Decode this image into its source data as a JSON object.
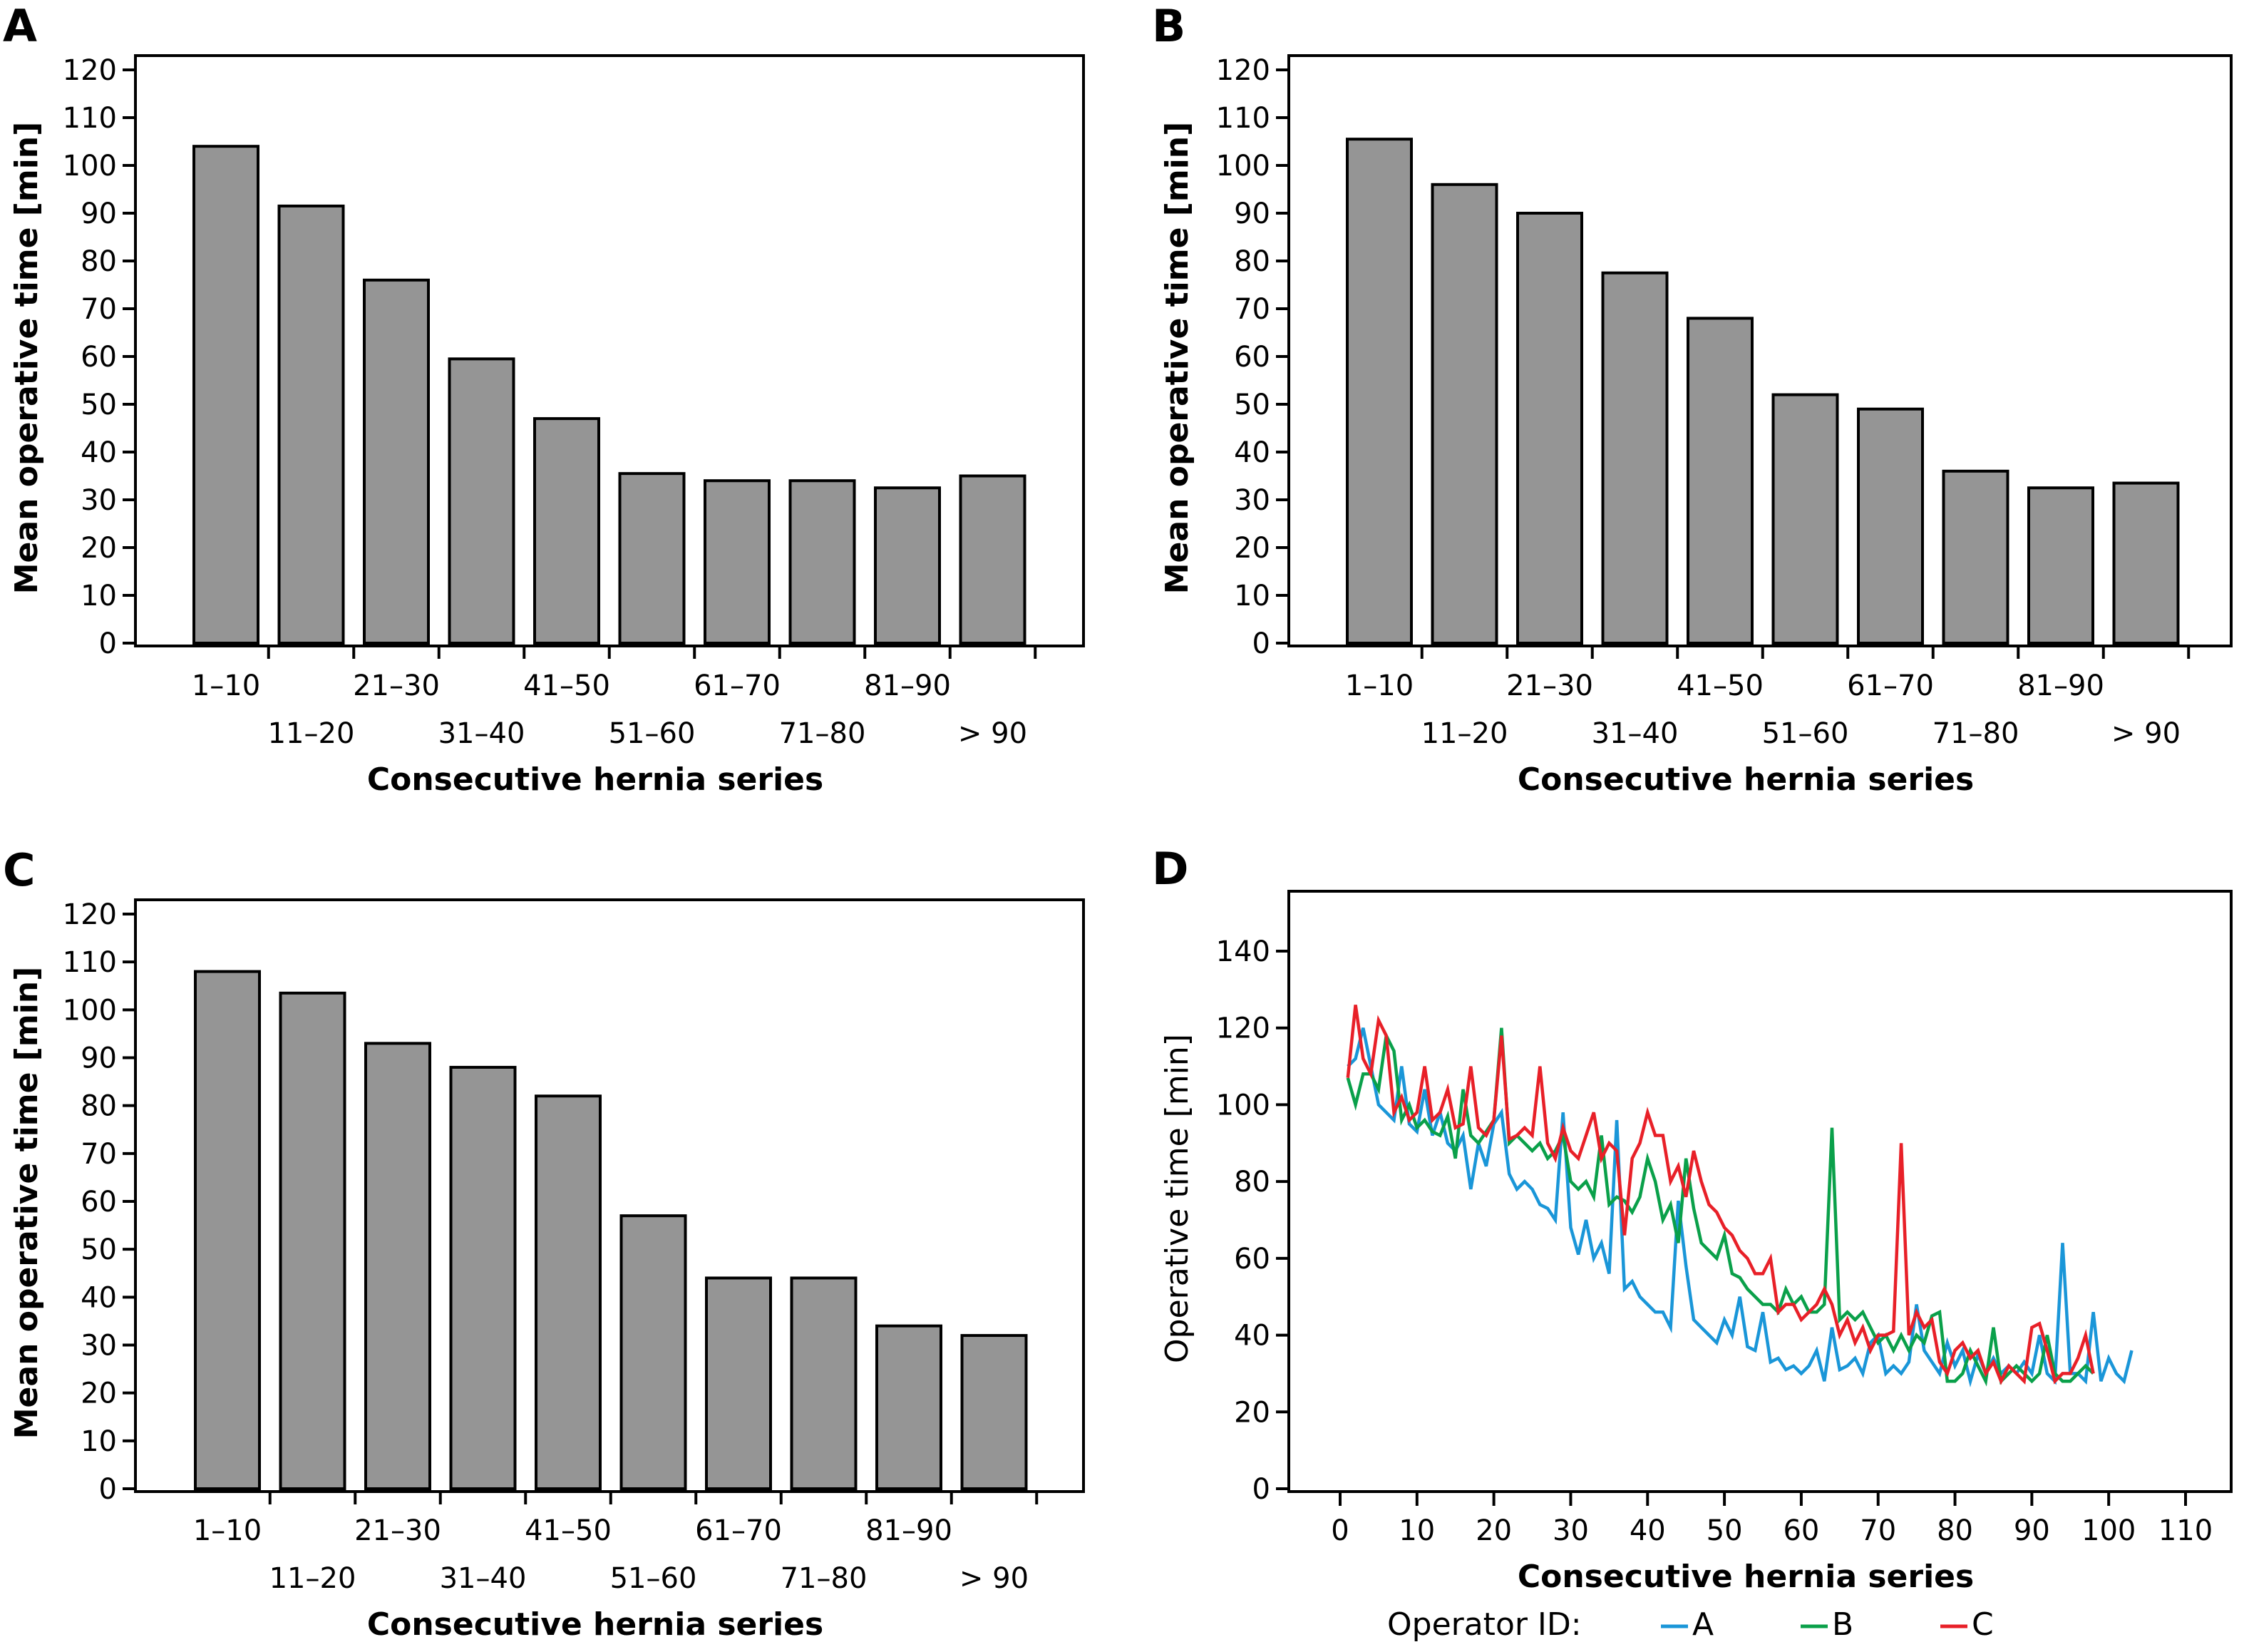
{
  "chart_data": [
    {
      "panel": "A",
      "type": "bar",
      "title": "",
      "categories": [
        "1–10",
        "11–20",
        "21–30",
        "31–40",
        "41–50",
        "51–60",
        "61–70",
        "71–80",
        "81–90",
        "> 90"
      ],
      "values": [
        104,
        91.5,
        76,
        59.5,
        47,
        35.5,
        34,
        34,
        32.5,
        35
      ],
      "xlabel": "Consecutive hernia series",
      "ylabel": "Mean operative time [min]",
      "ylim": [
        0,
        125
      ],
      "yticks": [
        0,
        10,
        20,
        30,
        40,
        50,
        60,
        70,
        80,
        90,
        100,
        110,
        120
      ],
      "grid": false,
      "bar_color": "#959595"
    },
    {
      "panel": "B",
      "type": "bar",
      "title": "",
      "categories": [
        "1–10",
        "11–20",
        "21–30",
        "31–40",
        "41–50",
        "51–60",
        "61–70",
        "71–80",
        "81–90",
        "> 90"
      ],
      "values": [
        105.5,
        96,
        90,
        77.5,
        68,
        52,
        49,
        36,
        32.5,
        33.5
      ],
      "xlabel": "Consecutive hernia series",
      "ylabel": "Mean operative time [min]",
      "ylim": [
        0,
        125
      ],
      "yticks": [
        0,
        10,
        20,
        30,
        40,
        50,
        60,
        70,
        80,
        90,
        100,
        110,
        120
      ],
      "grid": false,
      "bar_color": "#959595"
    },
    {
      "panel": "C",
      "type": "bar",
      "title": "",
      "categories": [
        "1–10",
        "11–20",
        "21–30",
        "31–40",
        "41–50",
        "51–60",
        "61–70",
        "71–80",
        "81–90",
        "> 90"
      ],
      "values": [
        108,
        103.5,
        93,
        88,
        82,
        57,
        44,
        44,
        34,
        32
      ],
      "xlabel": "Consecutive hernia series",
      "ylabel": "Mean operative time [min]",
      "ylim": [
        0,
        125
      ],
      "yticks": [
        0,
        10,
        20,
        30,
        40,
        50,
        60,
        70,
        80,
        90,
        100,
        110,
        120
      ],
      "grid": false,
      "bar_color": "#959595"
    },
    {
      "panel": "D",
      "type": "line",
      "title": "",
      "xlabel": "Consecutive hernia series",
      "ylabel": "Operative time [min]",
      "xlim": [
        -4,
        116
      ],
      "ylim": [
        0,
        155
      ],
      "xticks": [
        0,
        10,
        20,
        30,
        40,
        50,
        60,
        70,
        80,
        90,
        100,
        110
      ],
      "yticks": [
        0,
        20,
        40,
        60,
        80,
        100,
        120,
        140
      ],
      "grid": false,
      "legend": {
        "title": "Operator ID:",
        "placement": "bottom"
      },
      "series": [
        {
          "name": "A",
          "color": "#1a96d8",
          "x": [
            1,
            2,
            3,
            4,
            5,
            6,
            7,
            8,
            9,
            10,
            11,
            12,
            13,
            14,
            15,
            16,
            17,
            18,
            19,
            20,
            21,
            22,
            23,
            24,
            25,
            26,
            27,
            28,
            29,
            30,
            31,
            32,
            33,
            34,
            35,
            36,
            37,
            38,
            39,
            40,
            41,
            42,
            43,
            44,
            45,
            46,
            47,
            48,
            49,
            50,
            51,
            52,
            53,
            54,
            55,
            56,
            57,
            58,
            59,
            60,
            61,
            62,
            63,
            64,
            65,
            66,
            67,
            68,
            69,
            70,
            71,
            72,
            73,
            74,
            75,
            76,
            77,
            78,
            79,
            80,
            81,
            82,
            83,
            84,
            85,
            86,
            87,
            88,
            89,
            90,
            91,
            92,
            93,
            94,
            95,
            96,
            97,
            98,
            99,
            100,
            101,
            102,
            103
          ],
          "y": [
            110,
            112,
            120,
            110,
            100,
            98,
            96,
            110,
            95,
            93,
            104,
            92,
            98,
            90,
            88,
            92,
            78,
            90,
            84,
            95,
            98,
            82,
            78,
            80,
            78,
            74,
            73,
            70,
            98,
            68,
            61,
            70,
            60,
            64,
            56,
            96,
            52,
            54,
            50,
            48,
            46,
            46,
            42,
            75,
            58,
            44,
            42,
            40,
            38,
            44,
            40,
            50,
            37,
            36,
            46,
            33,
            34,
            31,
            32,
            30,
            32,
            36,
            28,
            42,
            31,
            32,
            34,
            30,
            38,
            40,
            30,
            32,
            30,
            33,
            48,
            36,
            33,
            30,
            38,
            32,
            36,
            28,
            35,
            30,
            34,
            30,
            32,
            30,
            33,
            30,
            40,
            30,
            28,
            64,
            30,
            30,
            28,
            46,
            28,
            34,
            30,
            28,
            36
          ]
        },
        {
          "name": "B",
          "color": "#0aa04a",
          "x": [
            1,
            2,
            3,
            4,
            5,
            6,
            7,
            8,
            9,
            10,
            11,
            12,
            13,
            14,
            15,
            16,
            17,
            18,
            19,
            20,
            21,
            22,
            23,
            24,
            25,
            26,
            27,
            28,
            29,
            30,
            31,
            32,
            33,
            34,
            35,
            36,
            37,
            38,
            39,
            40,
            41,
            42,
            43,
            44,
            45,
            46,
            47,
            48,
            49,
            50,
            51,
            52,
            53,
            54,
            55,
            56,
            57,
            58,
            59,
            60,
            61,
            62,
            63,
            64,
            65,
            66,
            67,
            68,
            69,
            70,
            71,
            72,
            73,
            74,
            75,
            76,
            77,
            78,
            79,
            80,
            81,
            82,
            83,
            84,
            85,
            86,
            87,
            88,
            89,
            90,
            91,
            92,
            93,
            94,
            95,
            96,
            97,
            98
          ],
          "y": [
            107,
            100,
            108,
            108,
            104,
            118,
            114,
            96,
            100,
            94,
            96,
            93,
            92,
            97,
            86,
            104,
            92,
            90,
            93,
            96,
            120,
            90,
            92,
            90,
            88,
            90,
            86,
            88,
            92,
            80,
            78,
            80,
            76,
            92,
            74,
            76,
            75,
            72,
            76,
            86,
            80,
            70,
            74,
            64,
            86,
            73,
            64,
            62,
            60,
            66,
            56,
            55,
            52,
            50,
            48,
            48,
            46,
            52,
            48,
            50,
            46,
            46,
            48,
            94,
            44,
            46,
            44,
            46,
            42,
            38,
            40,
            36,
            40,
            36,
            40,
            38,
            45,
            46,
            28,
            28,
            30,
            36,
            32,
            28,
            42,
            28,
            30,
            32,
            30,
            28,
            30,
            40,
            30,
            28,
            28,
            30,
            32,
            30
          ]
        },
        {
          "name": "C",
          "color": "#e82028",
          "x": [
            1,
            2,
            3,
            4,
            5,
            6,
            7,
            8,
            9,
            10,
            11,
            12,
            13,
            14,
            15,
            16,
            17,
            18,
            19,
            20,
            21,
            22,
            23,
            24,
            25,
            26,
            27,
            28,
            29,
            30,
            31,
            32,
            33,
            34,
            35,
            36,
            37,
            38,
            39,
            40,
            41,
            42,
            43,
            44,
            45,
            46,
            47,
            48,
            49,
            50,
            51,
            52,
            53,
            54,
            55,
            56,
            57,
            58,
            59,
            60,
            61,
            62,
            63,
            64,
            65,
            66,
            67,
            68,
            69,
            70,
            71,
            72,
            73,
            74,
            75,
            76,
            77,
            78,
            79,
            80,
            81,
            82,
            83,
            84,
            85,
            86,
            87,
            88,
            89,
            90,
            91,
            92,
            93,
            94,
            95,
            96,
            97,
            98
          ],
          "y": [
            107,
            126,
            112,
            108,
            122,
            118,
            98,
            102,
            96,
            98,
            110,
            96,
            98,
            104,
            94,
            95,
            110,
            94,
            92,
            96,
            118,
            91,
            92,
            94,
            92,
            110,
            90,
            86,
            94,
            88,
            86,
            92,
            98,
            86,
            90,
            88,
            66,
            86,
            90,
            98,
            92,
            92,
            80,
            84,
            76,
            88,
            80,
            74,
            72,
            68,
            66,
            62,
            60,
            56,
            56,
            60,
            46,
            48,
            48,
            44,
            46,
            48,
            52,
            48,
            40,
            44,
            38,
            42,
            36,
            40,
            40,
            41,
            90,
            40,
            46,
            42,
            44,
            33,
            30,
            36,
            38,
            34,
            36,
            30,
            33,
            28,
            32,
            30,
            28,
            42,
            43,
            36,
            28,
            30,
            30,
            34,
            40,
            30
          ]
        }
      ]
    }
  ]
}
